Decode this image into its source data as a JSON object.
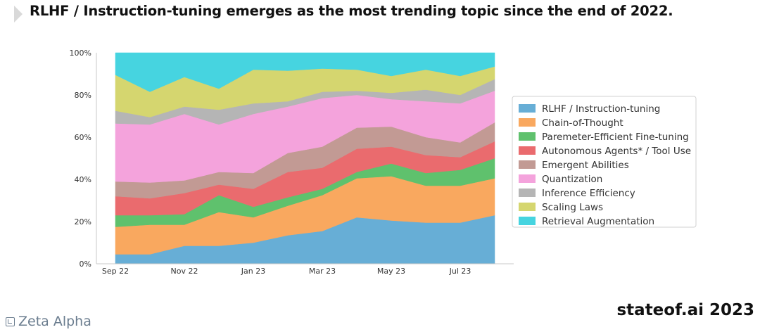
{
  "header": {
    "title": "RLHF / Instruction-tuning emerges as the most trending topic since the end of 2022."
  },
  "footer": {
    "logo_text": "Zeta Alpha",
    "source_text": "stateof.ai 2023"
  },
  "chart_data": {
    "type": "area",
    "stacked": true,
    "normalized": true,
    "grid": false,
    "legend_position": "right",
    "ylim": [
      0,
      100
    ],
    "y_ticks": [
      "0%",
      "20%",
      "40%",
      "60%",
      "80%",
      "100%"
    ],
    "x_ticks": [
      {
        "index": 0,
        "label": "Sep 22"
      },
      {
        "index": 2,
        "label": "Nov 22"
      },
      {
        "index": 4,
        "label": "Jan 23"
      },
      {
        "index": 6,
        "label": "Mar 23"
      },
      {
        "index": 8,
        "label": "May 23"
      },
      {
        "index": 10,
        "label": "Jul 23"
      }
    ],
    "x": [
      "Sep 22",
      "Oct 22",
      "Nov 22",
      "Dec 22",
      "Jan 23",
      "Feb 23",
      "Mar 23",
      "Apr 23",
      "May 23",
      "Jun 23",
      "Jul 23",
      "Aug 23"
    ],
    "series": [
      {
        "name": "RLHF / Instruction-tuning",
        "color": "#67aed6",
        "values": [
          4.5,
          4.5,
          8.5,
          8.5,
          10,
          13.5,
          15.5,
          22,
          20.5,
          19.5,
          19.5,
          23
        ]
      },
      {
        "name": "Chain-of-Thought",
        "color": "#f9a85f",
        "values": [
          13,
          14,
          10,
          16,
          12,
          14,
          17,
          18.5,
          21,
          17.5,
          17.5,
          17.5
        ]
      },
      {
        "name": "Paremeter-Efficient Fine-tuning",
        "color": "#5fc16d",
        "values": [
          5.5,
          4.5,
          5,
          8,
          5,
          4,
          3,
          3,
          6,
          6,
          7.5,
          9.5
        ]
      },
      {
        "name": "Autonomous Agents* / Tool Use",
        "color": "#ea6b6e",
        "values": [
          9,
          8,
          10,
          5,
          8.5,
          12,
          10,
          11,
          8,
          8.5,
          6,
          8
        ]
      },
      {
        "name": "Emergent Abilities",
        "color": "#c29a94",
        "values": [
          7,
          7.5,
          6,
          6,
          7.5,
          9,
          10,
          10,
          9.5,
          8.5,
          7,
          9
        ]
      },
      {
        "name": "Quantization",
        "color": "#f4a3dc",
        "values": [
          27.5,
          27.5,
          31.5,
          22.5,
          28,
          22,
          23,
          15.5,
          13,
          17,
          18.5,
          15
        ]
      },
      {
        "name": "Inference Efficiency",
        "color": "#b5b5b5",
        "values": [
          6,
          3.5,
          3.5,
          7,
          5,
          2.5,
          3,
          2,
          3,
          5.5,
          4,
          5.5
        ]
      },
      {
        "name": "Scaling Laws",
        "color": "#d5d66f",
        "values": [
          17,
          12,
          14,
          10,
          16,
          14.5,
          11,
          10,
          8,
          9.5,
          9,
          6
        ]
      },
      {
        "name": "Retrieval Augmentation",
        "color": "#46d4e0",
        "values": [
          10.5,
          18.5,
          11.5,
          17,
          8,
          8.5,
          7.5,
          8,
          11,
          8,
          11,
          6.5
        ]
      }
    ]
  }
}
